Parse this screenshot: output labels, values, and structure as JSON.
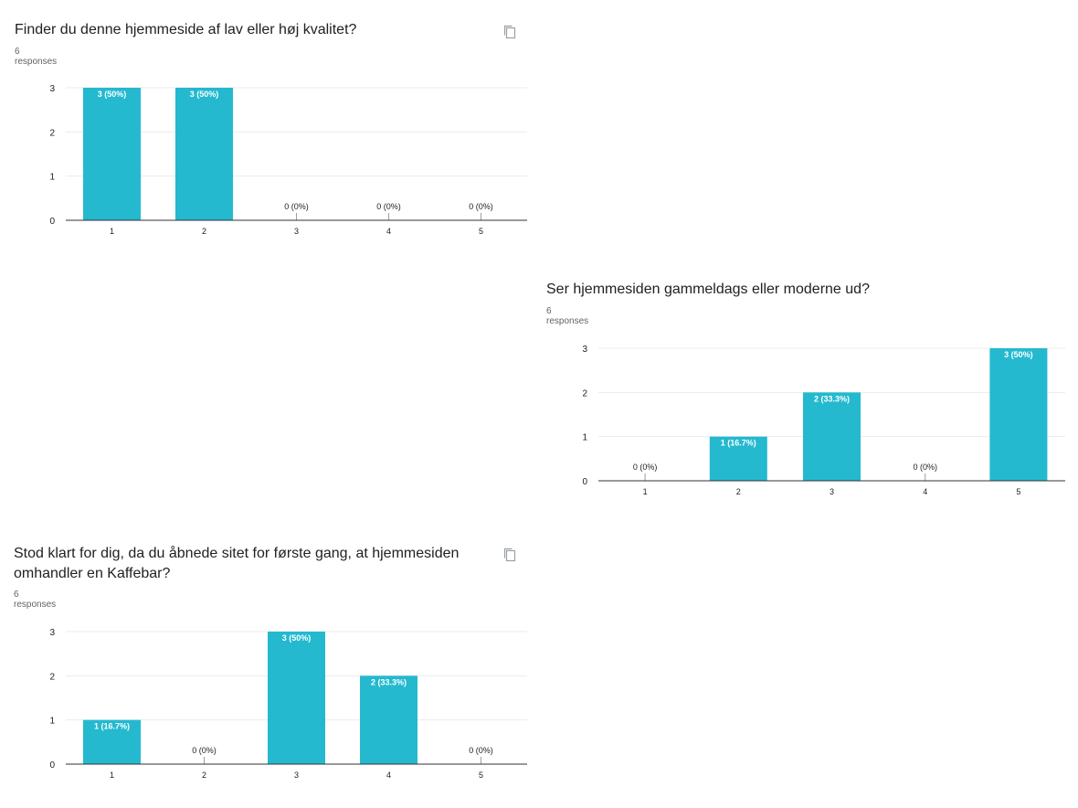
{
  "questions": [
    {
      "title": "Finder du denne hjemmeside af lav eller høj kvalitet?",
      "responses": "6 responses",
      "copy_icon": "copy-icon"
    },
    {
      "title": "Ser hjemmesiden gammeldags eller moderne ud?",
      "responses": "6 responses",
      "copy_icon": ""
    },
    {
      "title": "Stod klart for dig, da du åbnede sitet for første gang, at hjemmesiden omhandler en Kaffebar?",
      "responses": "6 responses",
      "copy_icon": "copy-icon"
    }
  ],
  "colors": {
    "bar": "#24b9cf",
    "grid": "#ebebeb",
    "axis": "#333333",
    "text": "#202124",
    "muted": "#5f6368"
  },
  "chart_data": [
    {
      "type": "bar",
      "title": "Finder du denne hjemmeside af lav eller høj kvalitet?",
      "categories": [
        "1",
        "2",
        "3",
        "4",
        "5"
      ],
      "values": [
        3,
        3,
        0,
        0,
        0
      ],
      "labels": [
        "3 (50%)",
        "3 (50%)",
        "0 (0%)",
        "0 (0%)",
        "0 (0%)"
      ],
      "yticks": [
        "0",
        "1",
        "2",
        "3"
      ],
      "ylim": [
        0,
        3
      ],
      "grid": true
    },
    {
      "type": "bar",
      "title": "Ser hjemmesiden gammeldags eller moderne ud?",
      "categories": [
        "1",
        "2",
        "3",
        "4",
        "5"
      ],
      "values": [
        0,
        1,
        2,
        0,
        3
      ],
      "labels": [
        "0 (0%)",
        "1 (16.7%)",
        "2 (33.3%)",
        "0 (0%)",
        "3 (50%)"
      ],
      "yticks": [
        "0",
        "1",
        "2",
        "3"
      ],
      "ylim": [
        0,
        3
      ],
      "grid": true
    },
    {
      "type": "bar",
      "title": "Stod klart for dig, da du åbnede sitet for første gang, at hjemmesiden omhandler en Kaffebar?",
      "categories": [
        "1",
        "2",
        "3",
        "4",
        "5"
      ],
      "values": [
        1,
        0,
        3,
        2,
        0
      ],
      "labels": [
        "1 (16.7%)",
        "0 (0%)",
        "3 (50%)",
        "2 (33.3%)",
        "0 (0%)"
      ],
      "yticks": [
        "0",
        "1",
        "2",
        "3"
      ],
      "ylim": [
        0,
        3
      ],
      "grid": true
    }
  ]
}
